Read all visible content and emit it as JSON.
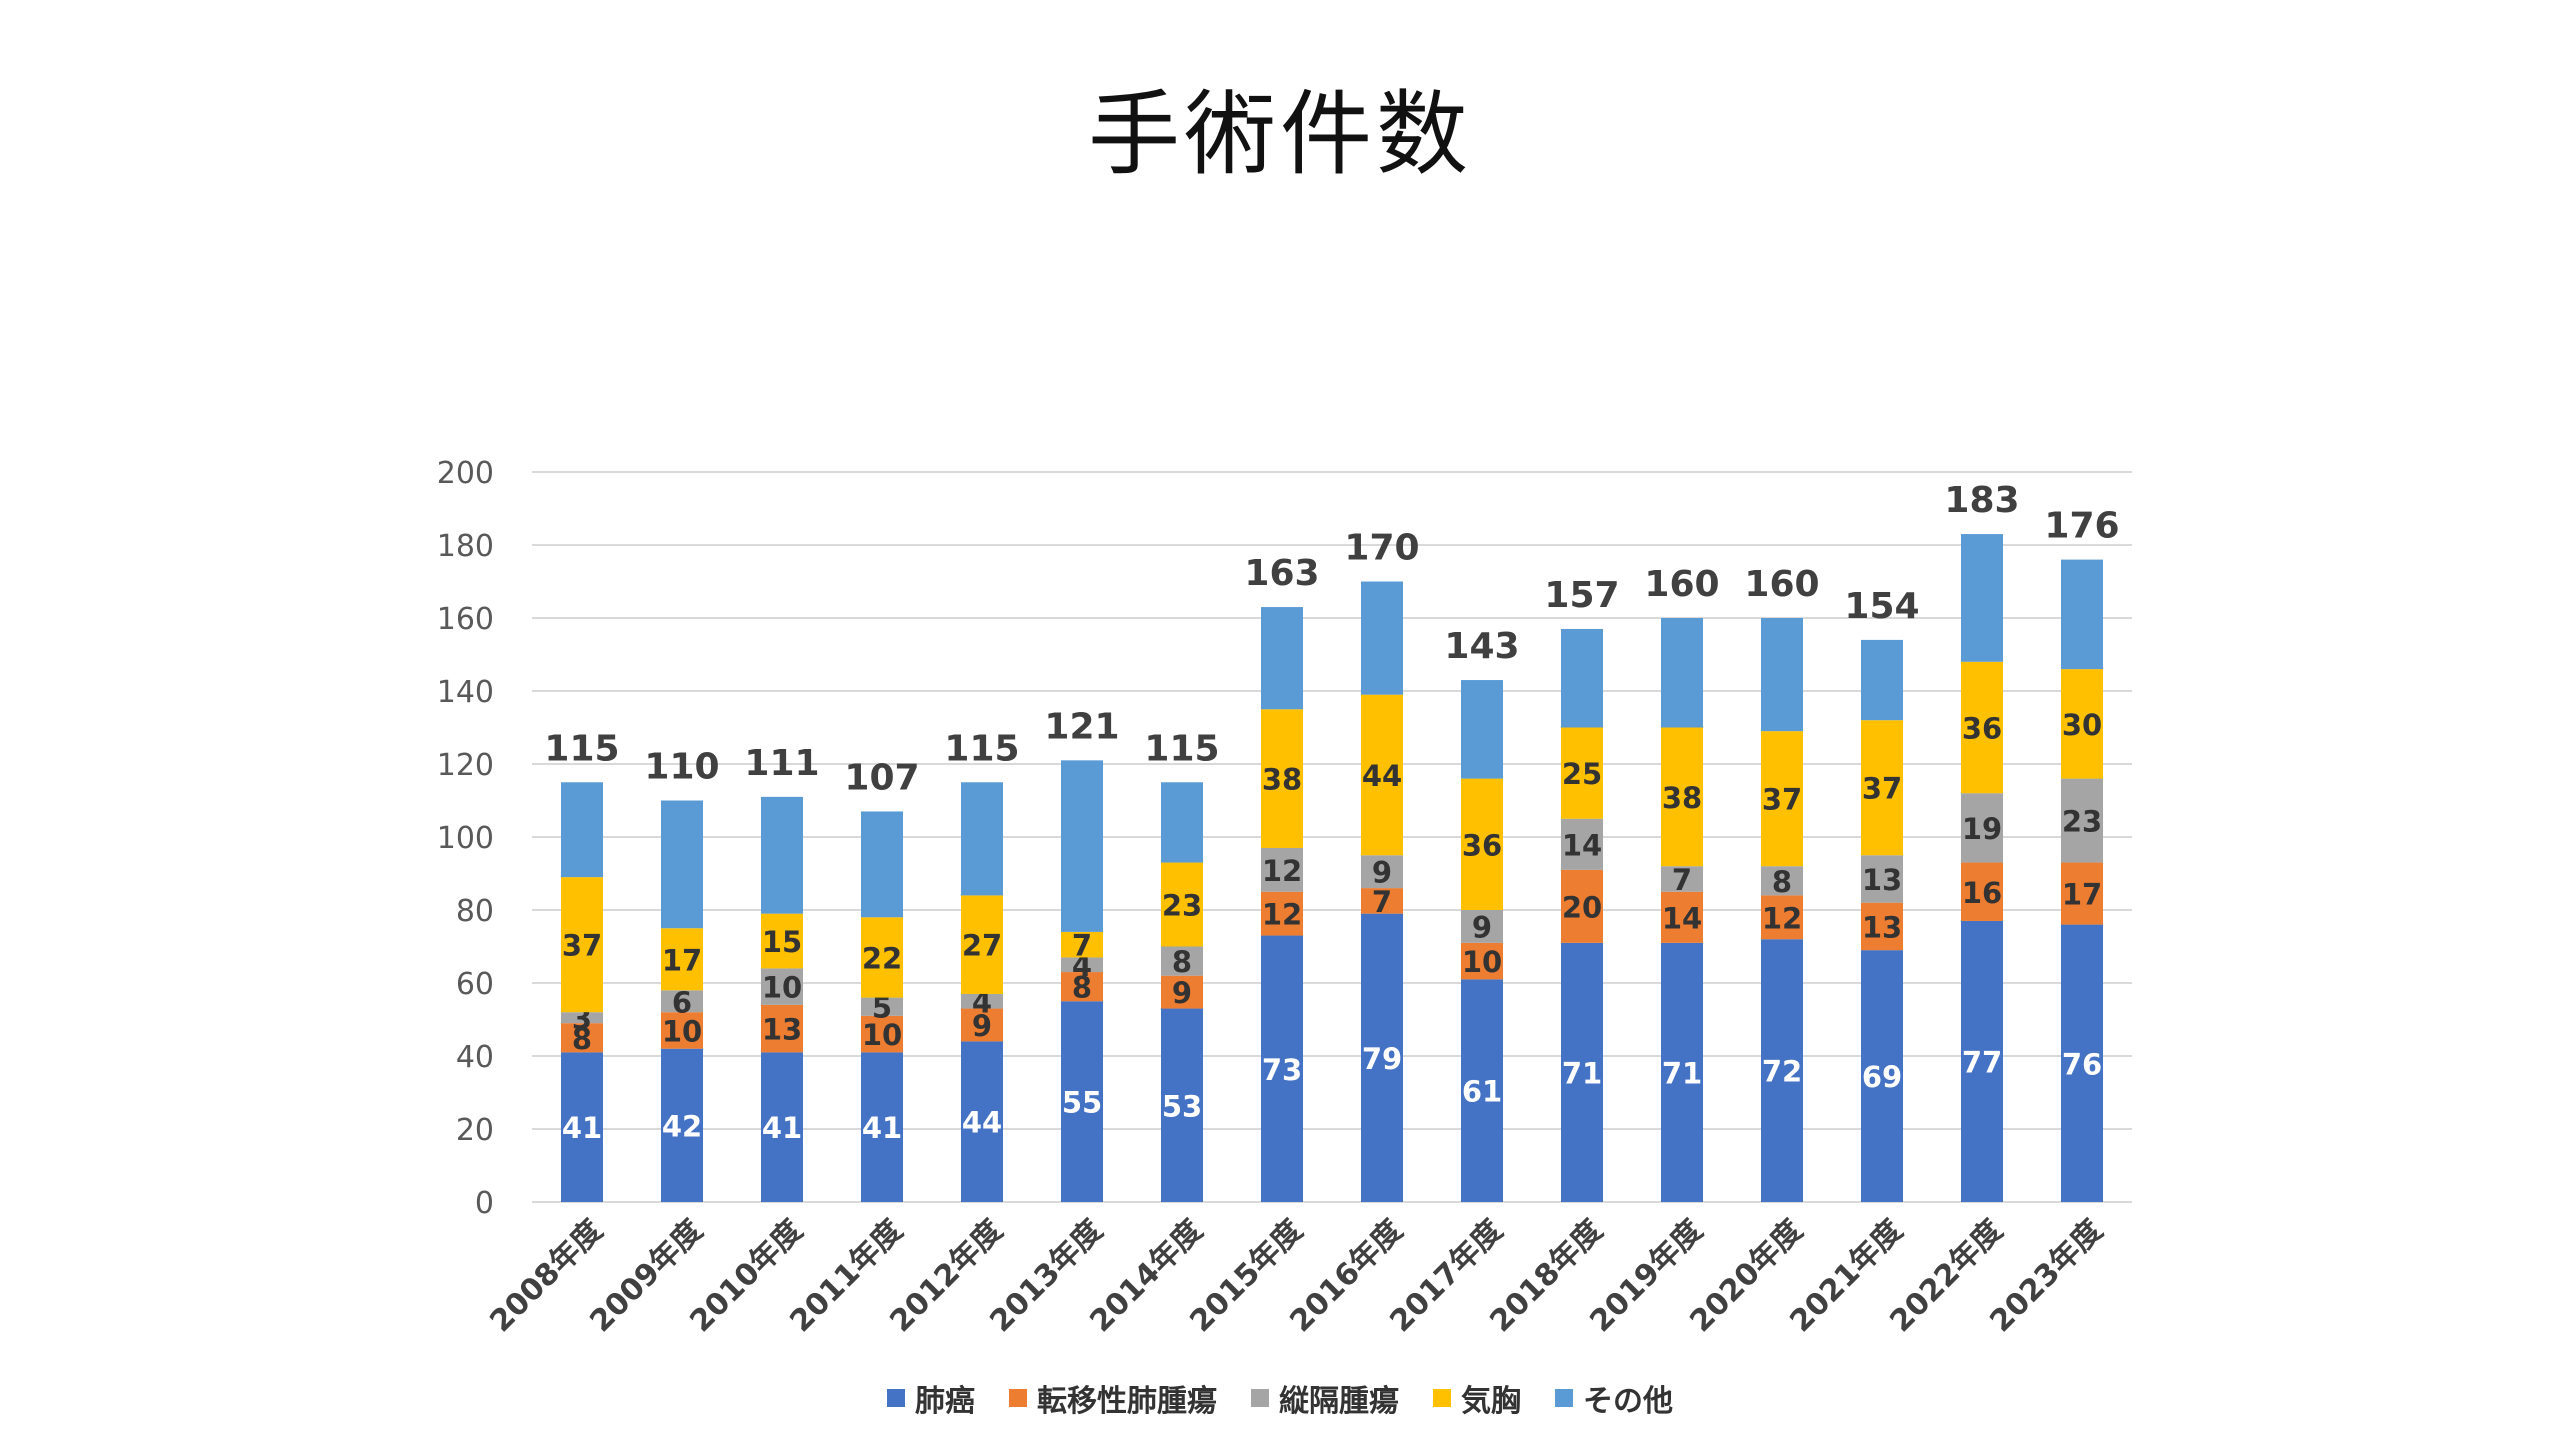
{
  "chart_data": {
    "type": "bar",
    "stacked": true,
    "title": "手術件数",
    "xlabel": "",
    "ylabel": "",
    "ylim": [
      0,
      200
    ],
    "yticks": [
      0,
      20,
      40,
      60,
      80,
      100,
      120,
      140,
      160,
      180,
      200
    ],
    "grid": true,
    "legend_position": "bottom",
    "categories": [
      "2008年度",
      "2009年度",
      "2010年度",
      "2011年度",
      "2012年度",
      "2013年度",
      "2014年度",
      "2015年度",
      "2016年度",
      "2017年度",
      "2018年度",
      "2019年度",
      "2020年度",
      "2021年度",
      "2022年度",
      "2023年度"
    ],
    "series": [
      {
        "name": "肺癌",
        "color": "#4472C4",
        "label_color": "#ffffff",
        "values": [
          41,
          42,
          41,
          41,
          44,
          55,
          53,
          73,
          79,
          61,
          71,
          71,
          72,
          69,
          77,
          76
        ]
      },
      {
        "name": "転移性肺腫瘍",
        "color": "#ED7D31",
        "label_color": "#333333",
        "values": [
          8,
          10,
          13,
          10,
          9,
          8,
          9,
          12,
          7,
          10,
          20,
          14,
          12,
          13,
          16,
          17
        ]
      },
      {
        "name": "縦隔腫瘍",
        "color": "#A5A5A5",
        "label_color": "#333333",
        "values": [
          3,
          6,
          10,
          5,
          4,
          4,
          8,
          12,
          9,
          9,
          14,
          7,
          8,
          13,
          19,
          23
        ]
      },
      {
        "name": "気胸",
        "color": "#FFC000",
        "label_color": "#333333",
        "values": [
          37,
          17,
          15,
          22,
          27,
          7,
          23,
          38,
          44,
          36,
          25,
          38,
          37,
          37,
          36,
          30
        ]
      },
      {
        "name": "その他",
        "color": "#5B9BD5",
        "label_color": "#333333",
        "values": [
          26,
          35,
          32,
          29,
          31,
          47,
          22,
          28,
          31,
          27,
          27,
          30,
          31,
          22,
          35,
          30
        ]
      }
    ],
    "totals": [
      115,
      110,
      111,
      107,
      115,
      121,
      115,
      163,
      170,
      143,
      157,
      160,
      160,
      154,
      183,
      176
    ],
    "hide_data_labels_for": [
      "その他"
    ]
  }
}
